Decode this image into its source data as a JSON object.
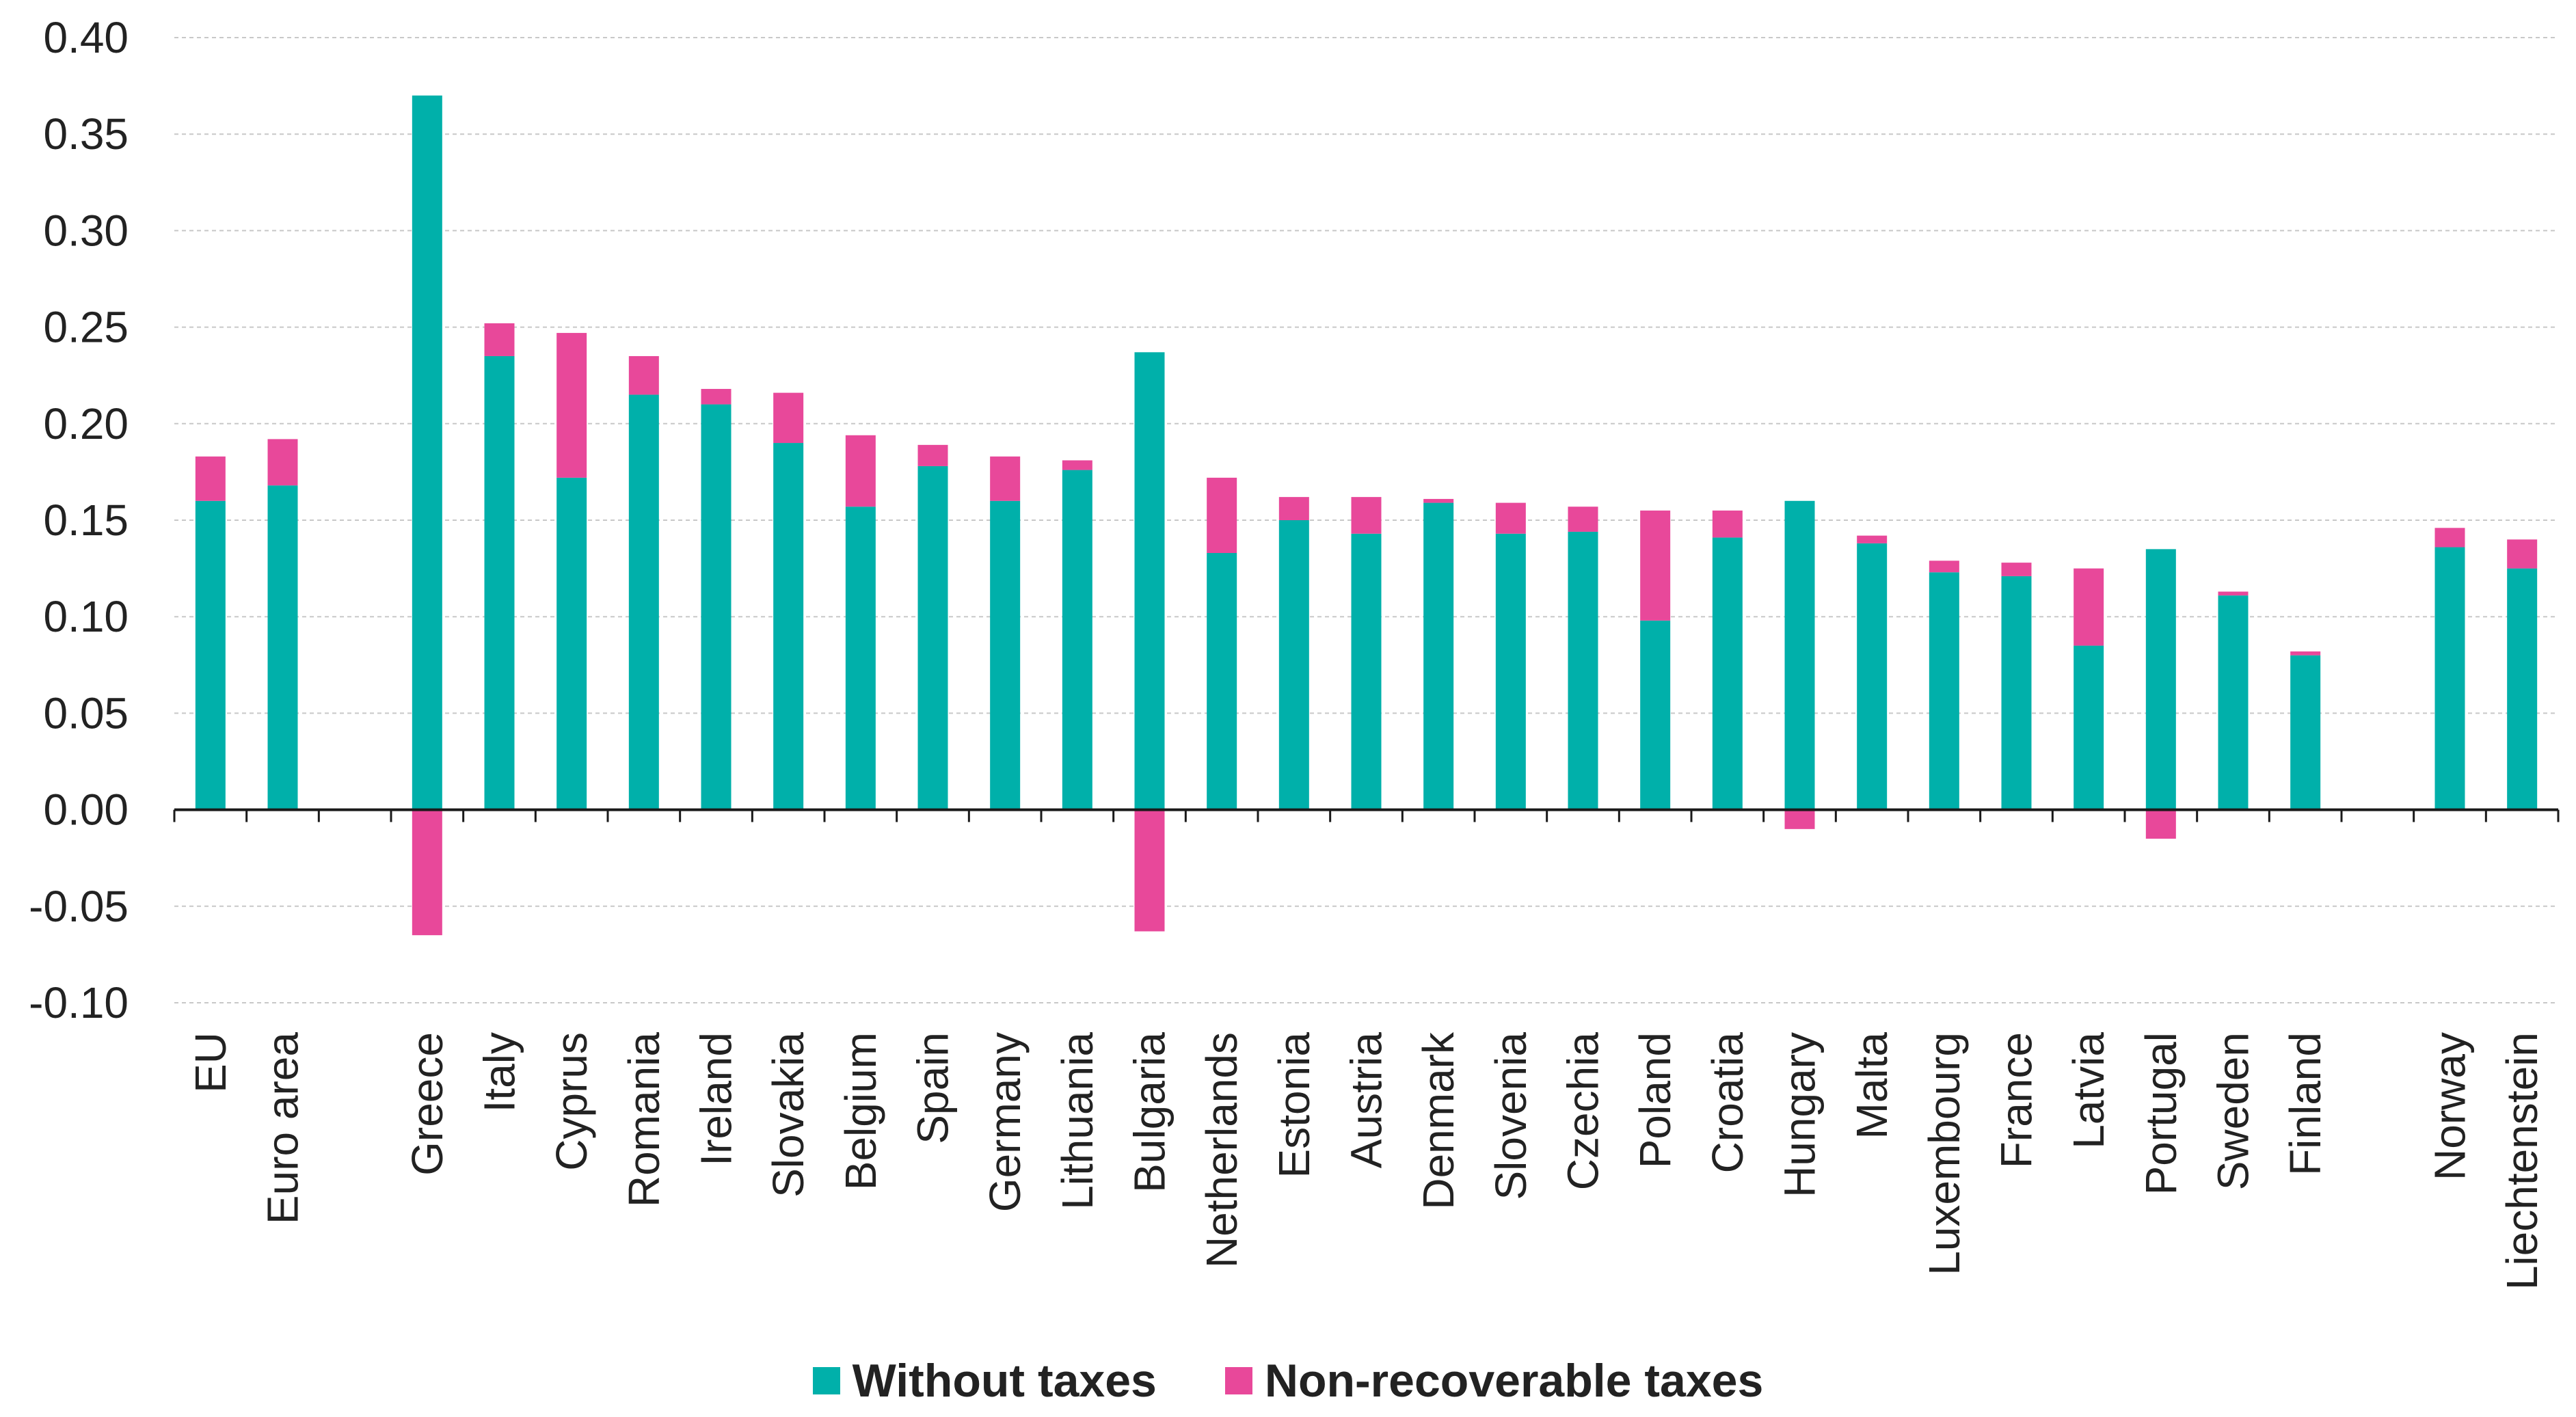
{
  "chart_data": {
    "type": "bar",
    "stacked": true,
    "title": "",
    "xlabel": "",
    "ylabel": "",
    "ylim": [
      -0.1,
      0.4
    ],
    "yticks": [
      "-0.10",
      "-0.05",
      "0.00",
      "0.05",
      "0.10",
      "0.15",
      "0.20",
      "0.25",
      "0.30",
      "0.35",
      "0.40"
    ],
    "grid": true,
    "legend_position": "bottom",
    "categories": [
      "EU",
      "Euro area",
      "",
      "Greece",
      "Italy",
      "Cyprus",
      "Romania",
      "Ireland",
      "Slovakia",
      "Belgium",
      "Spain",
      "Germany",
      "Lithuania",
      "Bulgaria",
      "Netherlands",
      "Estonia",
      "Austria",
      "Denmark",
      "Slovenia",
      "Czechia",
      "Poland",
      "Croatia",
      "Hungary",
      "Malta",
      "Luxembourg",
      "France",
      "Latvia",
      "Portugal",
      "Sweden",
      "Finland",
      "",
      "Norway",
      "Liechtenstein"
    ],
    "series": [
      {
        "name": "Without taxes",
        "color": "#00b0aa",
        "values": [
          0.16,
          0.168,
          null,
          0.37,
          0.235,
          0.172,
          0.215,
          0.21,
          0.19,
          0.157,
          0.178,
          0.16,
          0.176,
          0.237,
          0.133,
          0.15,
          0.143,
          0.159,
          0.143,
          0.144,
          0.098,
          0.141,
          0.16,
          0.138,
          0.123,
          0.121,
          0.085,
          0.135,
          0.111,
          0.08,
          null,
          0.136,
          0.125
        ]
      },
      {
        "name": "Non-recoverable taxes",
        "color": "#e8489a",
        "values": [
          0.023,
          0.024,
          null,
          -0.065,
          0.017,
          0.075,
          0.02,
          0.008,
          0.026,
          0.037,
          0.011,
          0.023,
          0.005,
          -0.063,
          0.039,
          0.012,
          0.019,
          0.002,
          0.016,
          0.013,
          0.057,
          0.014,
          -0.01,
          0.004,
          0.006,
          0.007,
          0.04,
          -0.015,
          0.002,
          0.002,
          null,
          0.01,
          0.015
        ]
      }
    ]
  }
}
